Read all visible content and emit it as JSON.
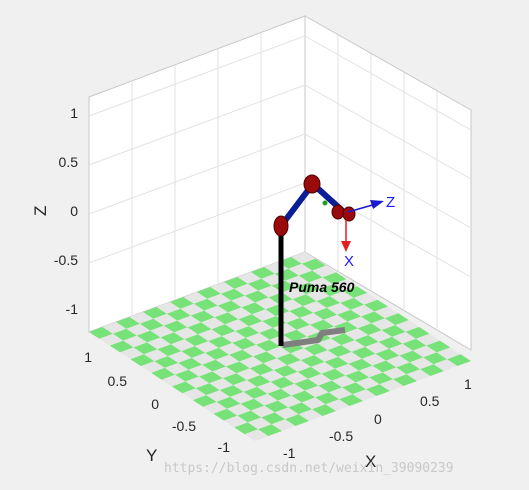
{
  "figure": {
    "robot_label": "Puma 560",
    "frame_axis_z": "Z",
    "frame_axis_x": "X",
    "watermark": "https://blog.csdn.net/weixin_39090239",
    "colors": {
      "background": "#f0f0f0",
      "floor_light": "#e6e6e6",
      "floor_green": "#77e277",
      "links": "#0a1e96",
      "joints": "#9a0a0a",
      "base": "#000000",
      "shadow": "#7f7f7f",
      "frame_arrows": "#1a1acc",
      "x_arrow": "#e02020"
    }
  },
  "axes": {
    "z_label": "Z",
    "y_label": "Y",
    "x_label": "X",
    "z_ticks": [
      "1",
      "0.5",
      "0",
      "-0.5",
      "-1"
    ],
    "y_ticks": [
      "1",
      "0.5",
      "0",
      "-0.5",
      "-1"
    ],
    "x_ticks": [
      "-1",
      "-0.5",
      "0",
      "0.5",
      "1"
    ]
  }
}
